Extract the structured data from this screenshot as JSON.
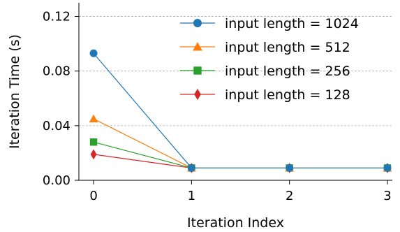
{
  "chart_data": {
    "type": "line",
    "title": "",
    "xlabel": "Iteration Index",
    "ylabel": "Iteration Time (s)",
    "x": [
      0,
      1,
      2,
      3
    ],
    "xticks": [
      "0",
      "1",
      "2",
      "3"
    ],
    "yticks": [
      "0.00",
      "0.04",
      "0.08",
      "0.12"
    ],
    "xlim": [
      -0.15,
      3.05
    ],
    "ylim": [
      0.0,
      0.13
    ],
    "grid": "horizontal dashed",
    "legend_position": "top-right",
    "series": [
      {
        "name": "input length = 1024",
        "values": [
          0.093,
          0.009,
          0.009,
          0.009
        ],
        "color": "#1f77b4",
        "marker": "circle"
      },
      {
        "name": "input length = 512",
        "values": [
          0.045,
          0.009,
          0.009,
          0.009
        ],
        "color": "#ff7f0e",
        "marker": "triangle"
      },
      {
        "name": "input length = 256",
        "values": [
          0.028,
          0.009,
          0.009,
          0.009
        ],
        "color": "#2ca02c",
        "marker": "square"
      },
      {
        "name": "input length = 128",
        "values": [
          0.019,
          0.009,
          0.009,
          0.009
        ],
        "color": "#d62728",
        "marker": "diamond"
      }
    ]
  }
}
